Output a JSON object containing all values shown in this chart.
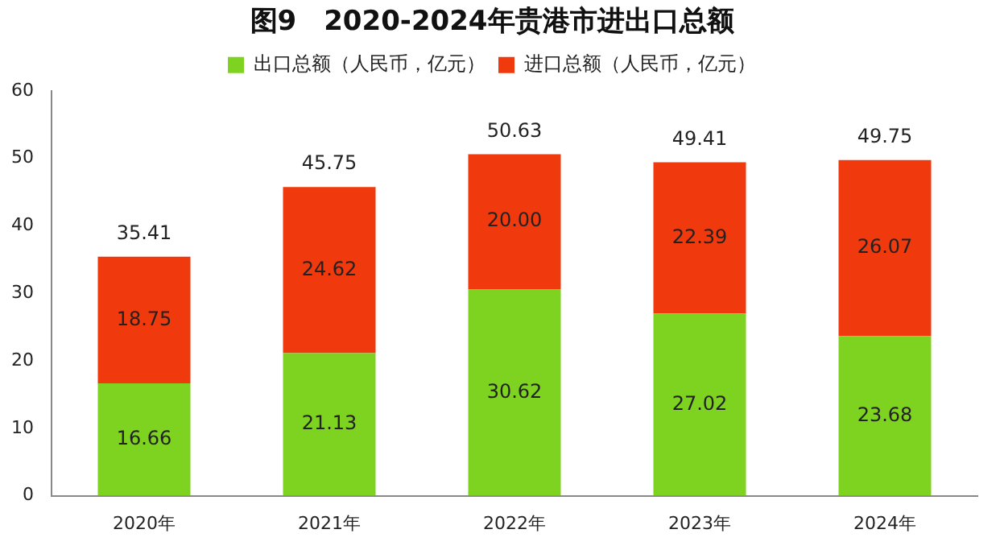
{
  "chart_data": {
    "type": "bar",
    "title": "图9　2020-2024年贵港市进出口总额",
    "categories": [
      "2020年",
      "2021年",
      "2022年",
      "2023年",
      "2024年"
    ],
    "stacked": true,
    "series": [
      {
        "name": "出口总额（人民币，亿元）",
        "color": "#7ed321",
        "values": [
          16.66,
          21.13,
          30.62,
          27.02,
          23.68
        ],
        "value_labels": [
          "16.66",
          "21.13",
          "30.62",
          "27.02",
          "23.68"
        ]
      },
      {
        "name": "进口总额（人民币，亿元）",
        "color": "#f03a0e",
        "values": [
          18.75,
          24.62,
          20.0,
          22.39,
          26.07
        ],
        "value_labels": [
          "18.75",
          "24.62",
          "20.00",
          "22.39",
          "26.07"
        ]
      }
    ],
    "totals": [
      "35.41",
      "45.75",
      "50.63",
      "49.41",
      "49.75"
    ],
    "ylim": [
      0,
      60
    ],
    "yticks": [
      0,
      10,
      20,
      30,
      40,
      50,
      60
    ],
    "grid": false,
    "legend": "top"
  }
}
